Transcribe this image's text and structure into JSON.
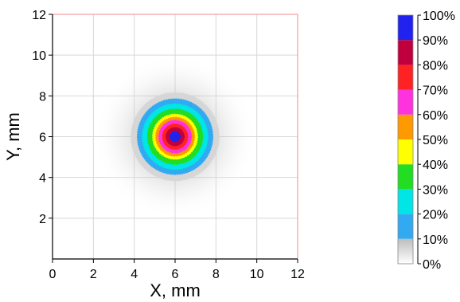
{
  "chart_data": {
    "type": "heatmap",
    "title": "",
    "xlabel": "X, mm",
    "ylabel": "Y, mm",
    "xlim": [
      0,
      12
    ],
    "ylim": [
      0,
      12
    ],
    "x_ticks": [
      "0",
      "2",
      "4",
      "6",
      "8",
      "10",
      "12"
    ],
    "y_ticks": [
      "2",
      "4",
      "6",
      "8",
      "10",
      "12"
    ],
    "grid": true,
    "spot": {
      "center_x": 6,
      "center_y": 6,
      "contour_radii_mm": [
        {
          "level": 10,
          "radius": 2.15
        },
        {
          "level": 20,
          "radius": 1.85
        },
        {
          "level": 30,
          "radius": 1.6
        },
        {
          "level": 40,
          "radius": 1.35
        },
        {
          "level": 50,
          "radius": 1.1
        },
        {
          "level": 60,
          "radius": 0.95
        },
        {
          "level": 70,
          "radius": 0.8
        },
        {
          "level": 80,
          "radius": 0.62
        },
        {
          "level": 90,
          "radius": 0.45
        },
        {
          "level": 100,
          "radius": 0.25
        }
      ],
      "halo_radius_mm": 4.0
    },
    "colorbar": {
      "ticks": [
        "0%",
        "10%",
        "20%",
        "30%",
        "40%",
        "50%",
        "60%",
        "70%",
        "80%",
        "90%",
        "100%"
      ],
      "bands": [
        {
          "from": 0,
          "to": 10,
          "color": "#d6d6d6"
        },
        {
          "from": 10,
          "to": 20,
          "color": "#32aaf2"
        },
        {
          "from": 20,
          "to": 30,
          "color": "#00e5e5"
        },
        {
          "from": 30,
          "to": 40,
          "color": "#22dd22"
        },
        {
          "from": 40,
          "to": 50,
          "color": "#ffff00"
        },
        {
          "from": 50,
          "to": 60,
          "color": "#ff9900"
        },
        {
          "from": 60,
          "to": 70,
          "color": "#ff33dd"
        },
        {
          "from": 70,
          "to": 80,
          "color": "#ff2222"
        },
        {
          "from": 80,
          "to": 90,
          "color": "#c0003c"
        },
        {
          "from": 90,
          "to": 100,
          "color": "#2222ee"
        }
      ]
    },
    "colors": {
      "right_top_frame": "#ef8b8b",
      "axis": "#000000",
      "grid": "#d8d8d8"
    }
  }
}
